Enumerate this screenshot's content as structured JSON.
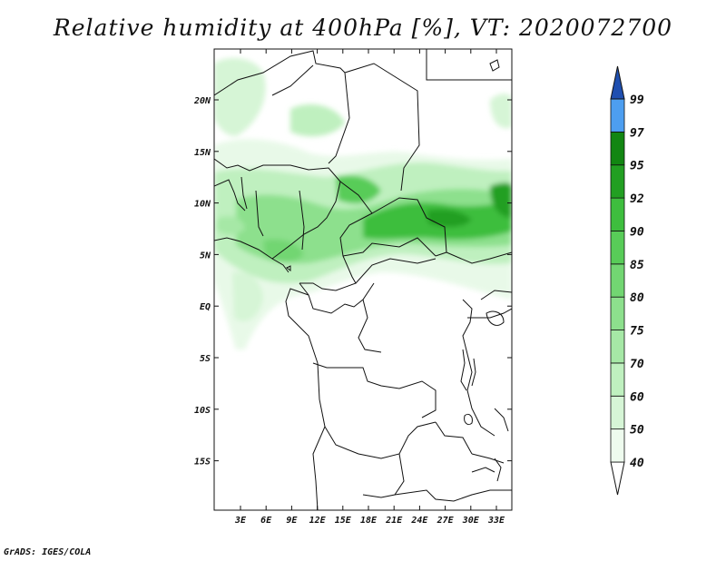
{
  "title": "Relative humidity at 400hPa [%], VT: 2020072700",
  "credit": "GrADS: IGES/COLA",
  "lon_labels": [
    "3E",
    "6E",
    "9E",
    "12E",
    "15E",
    "18E",
    "21E",
    "24E",
    "27E",
    "30E",
    "33E"
  ],
  "lat_labels": [
    "20N",
    "15N",
    "10N",
    "5N",
    "EQ",
    "5S",
    "10S",
    "15S"
  ],
  "colorbar": {
    "levels": [
      "40",
      "50",
      "60",
      "70",
      "75",
      "80",
      "85",
      "90",
      "92",
      "95",
      "97",
      "99"
    ],
    "colors": [
      "#eefbee",
      "#d6f5d6",
      "#bff0bf",
      "#a6e8a6",
      "#8de08d",
      "#72d672",
      "#58cc58",
      "#3ebe3e",
      "#229f22",
      "#128612",
      "#4d9ef0",
      "#2d72d8",
      "#1f4fb0"
    ]
  },
  "chart_data": {
    "type": "heatmap",
    "variable": "Relative humidity at 400hPa",
    "units": "%",
    "valid_time": "2020072700",
    "lon_range": [
      0,
      35
    ],
    "lat_range": [
      -20,
      25
    ],
    "contour_levels": [
      40,
      50,
      60,
      70,
      75,
      80,
      85,
      90,
      92,
      95,
      97,
      99
    ]
  }
}
